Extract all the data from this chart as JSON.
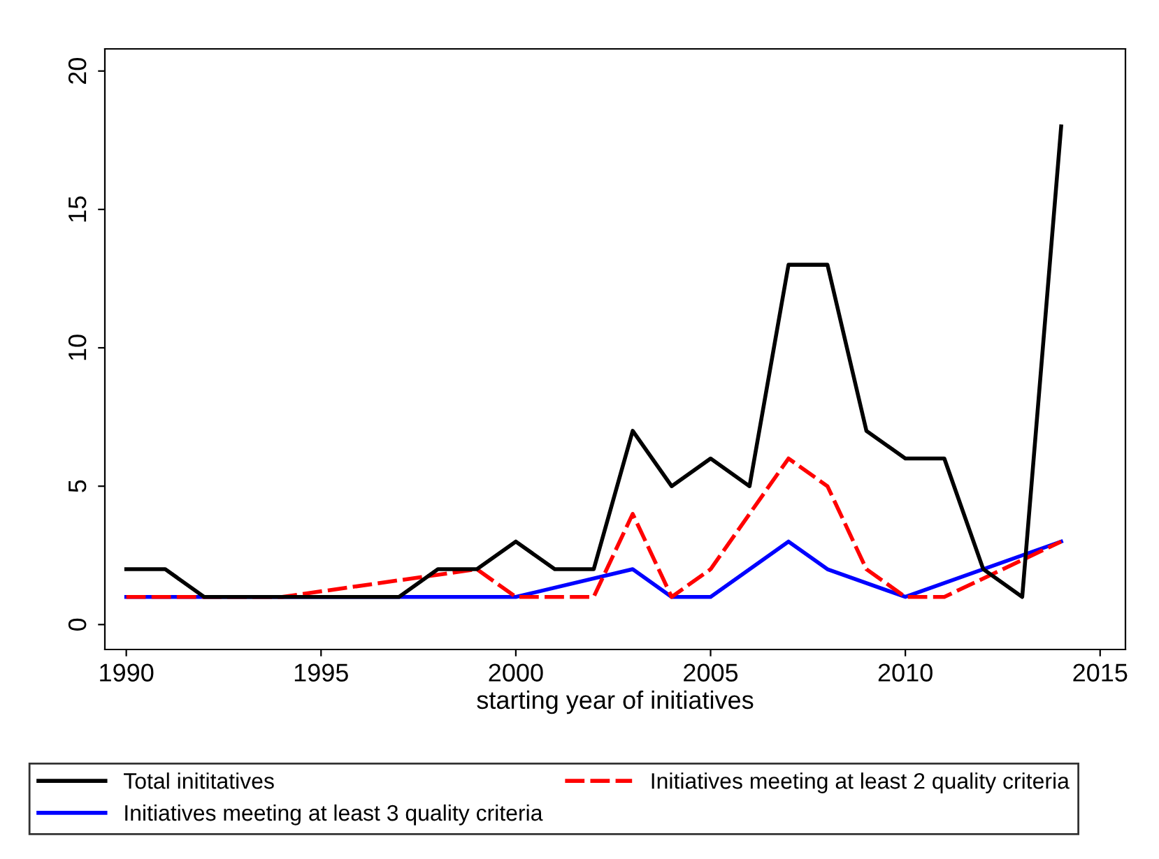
{
  "chart_data": {
    "type": "line",
    "xlabel": "starting year of initiatives",
    "xlim": [
      1989.45,
      2015.65
    ],
    "xticks": [
      1990,
      1995,
      2000,
      2005,
      2010,
      2015
    ],
    "ylim": [
      -0.9,
      20.8
    ],
    "yticks": [
      0,
      5,
      10,
      15,
      20
    ],
    "grid": false,
    "legend": "bottom",
    "marker": "none",
    "series": [
      {
        "name": "Total inititatives",
        "color": "#000000",
        "line_style": "solid",
        "x": [
          1990,
          1991,
          1992,
          1993,
          1994,
          1995,
          1996,
          1997,
          1998,
          1999,
          2000,
          2001,
          2002,
          2003,
          2004,
          2005,
          2006,
          2007,
          2008,
          2009,
          2010,
          2011,
          2012,
          2013,
          2014
        ],
        "values": [
          2,
          2,
          1,
          1,
          1,
          1,
          1,
          1,
          2,
          2,
          3,
          2,
          2,
          7,
          5,
          6,
          5,
          13,
          13,
          7,
          6,
          6,
          2,
          1,
          18
        ]
      },
      {
        "name": "Initiatives meeting at least 2 quality criteria",
        "color": "#ff0000",
        "line_style": "dashed",
        "x": [
          1990,
          1994,
          1999,
          2000,
          2002,
          2003,
          2004,
          2005,
          2006,
          2007,
          2008,
          2009,
          2010,
          2011,
          2014
        ],
        "values": [
          1,
          1,
          2,
          1,
          1,
          4,
          1,
          2,
          4,
          6,
          5,
          2,
          1,
          1,
          3
        ]
      },
      {
        "name": "Initiatives meeting at least 3 quality criteria",
        "color": "#0000ff",
        "line_style": "solid",
        "x": [
          1990,
          2000,
          2003,
          2004,
          2005,
          2007,
          2008,
          2010,
          2014
        ],
        "values": [
          1,
          1,
          2,
          1,
          1,
          3,
          2,
          1,
          3
        ]
      }
    ]
  }
}
